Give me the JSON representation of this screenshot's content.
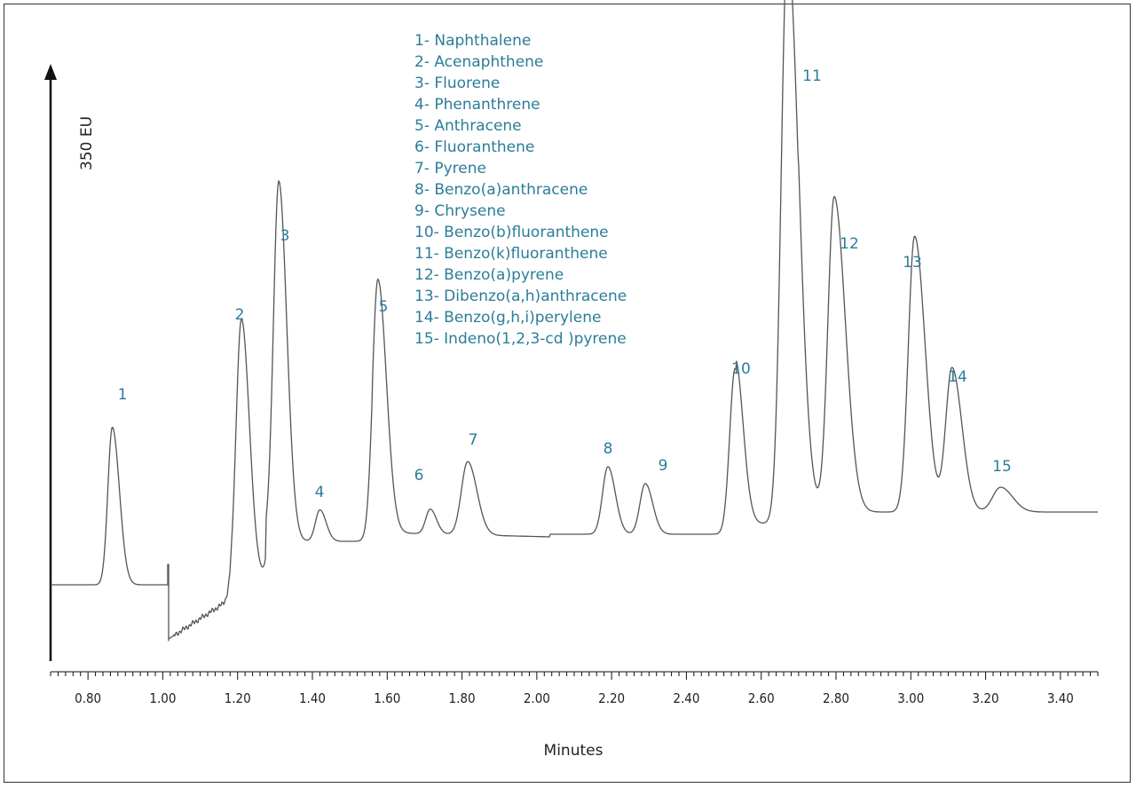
{
  "chart_data": {
    "type": "line",
    "title": "",
    "xlabel": "Minutes",
    "ylabel": "350 EU",
    "xlim": [
      0.7,
      3.5
    ],
    "x_ticks": [
      "0.80",
      "1.00",
      "1.20",
      "1.40",
      "1.60",
      "1.80",
      "2.00",
      "2.20",
      "2.40",
      "2.60",
      "2.80",
      "3.00",
      "3.20",
      "3.40"
    ],
    "grid": false,
    "legend_position": "top-center",
    "legend": [
      "1- Naphthalene",
      "2- Acenaphthene",
      "3- Fluorene",
      "4- Phenanthrene",
      "5- Anthracene",
      "6- Fluoranthene",
      "7- Pyrene",
      "8- Benzo(a)anthracene",
      "9- Chrysene",
      "10- Benzo(b)fluoranthene",
      "11- Benzo(k)fluoranthene",
      "12- Benzo(a)pyrene",
      "13- Dibenzo(a,h)anthracene",
      "14- Benzo(g,h,i)perylene",
      "15- Indeno(1,2,3-cd )pyrene"
    ],
    "peaks": [
      {
        "label": "1",
        "time": 0.865,
        "height": 140
      },
      {
        "label": "2",
        "time": 1.21,
        "height": 240
      },
      {
        "label": "3",
        "time": 1.31,
        "height": 320
      },
      {
        "label": "4",
        "time": 1.42,
        "height": 28
      },
      {
        "label": "5",
        "time": 1.575,
        "height": 225
      },
      {
        "label": "6",
        "time": 1.715,
        "height": 22
      },
      {
        "label": "7",
        "time": 1.815,
        "height": 65
      },
      {
        "label": "8",
        "time": 2.19,
        "height": 60
      },
      {
        "label": "9",
        "time": 2.29,
        "height": 45
      },
      {
        "label": "10",
        "time": 2.53,
        "height": 147
      },
      {
        "label": "11",
        "time": 2.67,
        "height": 512
      },
      {
        "label": "12",
        "time": 2.795,
        "height": 280
      },
      {
        "label": "13",
        "time": 3.01,
        "height": 245
      },
      {
        "label": "14",
        "time": 3.11,
        "height": 128
      },
      {
        "label": "15",
        "time": 3.24,
        "height": 22
      }
    ],
    "colors": {
      "trace": "#555555",
      "labels": "#2b7d99",
      "axis": "#111111"
    }
  }
}
